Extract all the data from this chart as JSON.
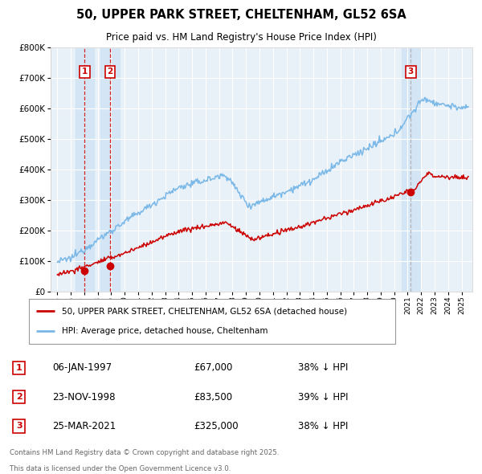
{
  "title": "50, UPPER PARK STREET, CHELTENHAM, GL52 6SA",
  "subtitle": "Price paid vs. HM Land Registry's House Price Index (HPI)",
  "legend_line1": "50, UPPER PARK STREET, CHELTENHAM, GL52 6SA (detached house)",
  "legend_line2": "HPI: Average price, detached house, Cheltenham",
  "transactions": [
    {
      "num": 1,
      "date": "06-JAN-1997",
      "price": 67000,
      "pct": "38%",
      "dir": "↓",
      "year_x": 1997.03
    },
    {
      "num": 2,
      "date": "23-NOV-1998",
      "price": 83500,
      "pct": "39%",
      "dir": "↓",
      "year_x": 1998.9
    },
    {
      "num": 3,
      "date": "25-MAR-2021",
      "price": 325000,
      "pct": "38%",
      "dir": "↓",
      "year_x": 2021.23
    }
  ],
  "footer_line1": "Contains HM Land Registry data © Crown copyright and database right 2025.",
  "footer_line2": "This data is licensed under the Open Government Licence v3.0.",
  "hpi_color": "#7ab8e8",
  "price_color": "#cc0000",
  "plot_bg": "#e8f0f8",
  "highlight_color": "#d0e4f5",
  "ylim": [
    0,
    800000
  ],
  "xlim_start": 1994.5,
  "xlim_end": 2025.8,
  "title_fontsize": 10.5,
  "subtitle_fontsize": 9
}
